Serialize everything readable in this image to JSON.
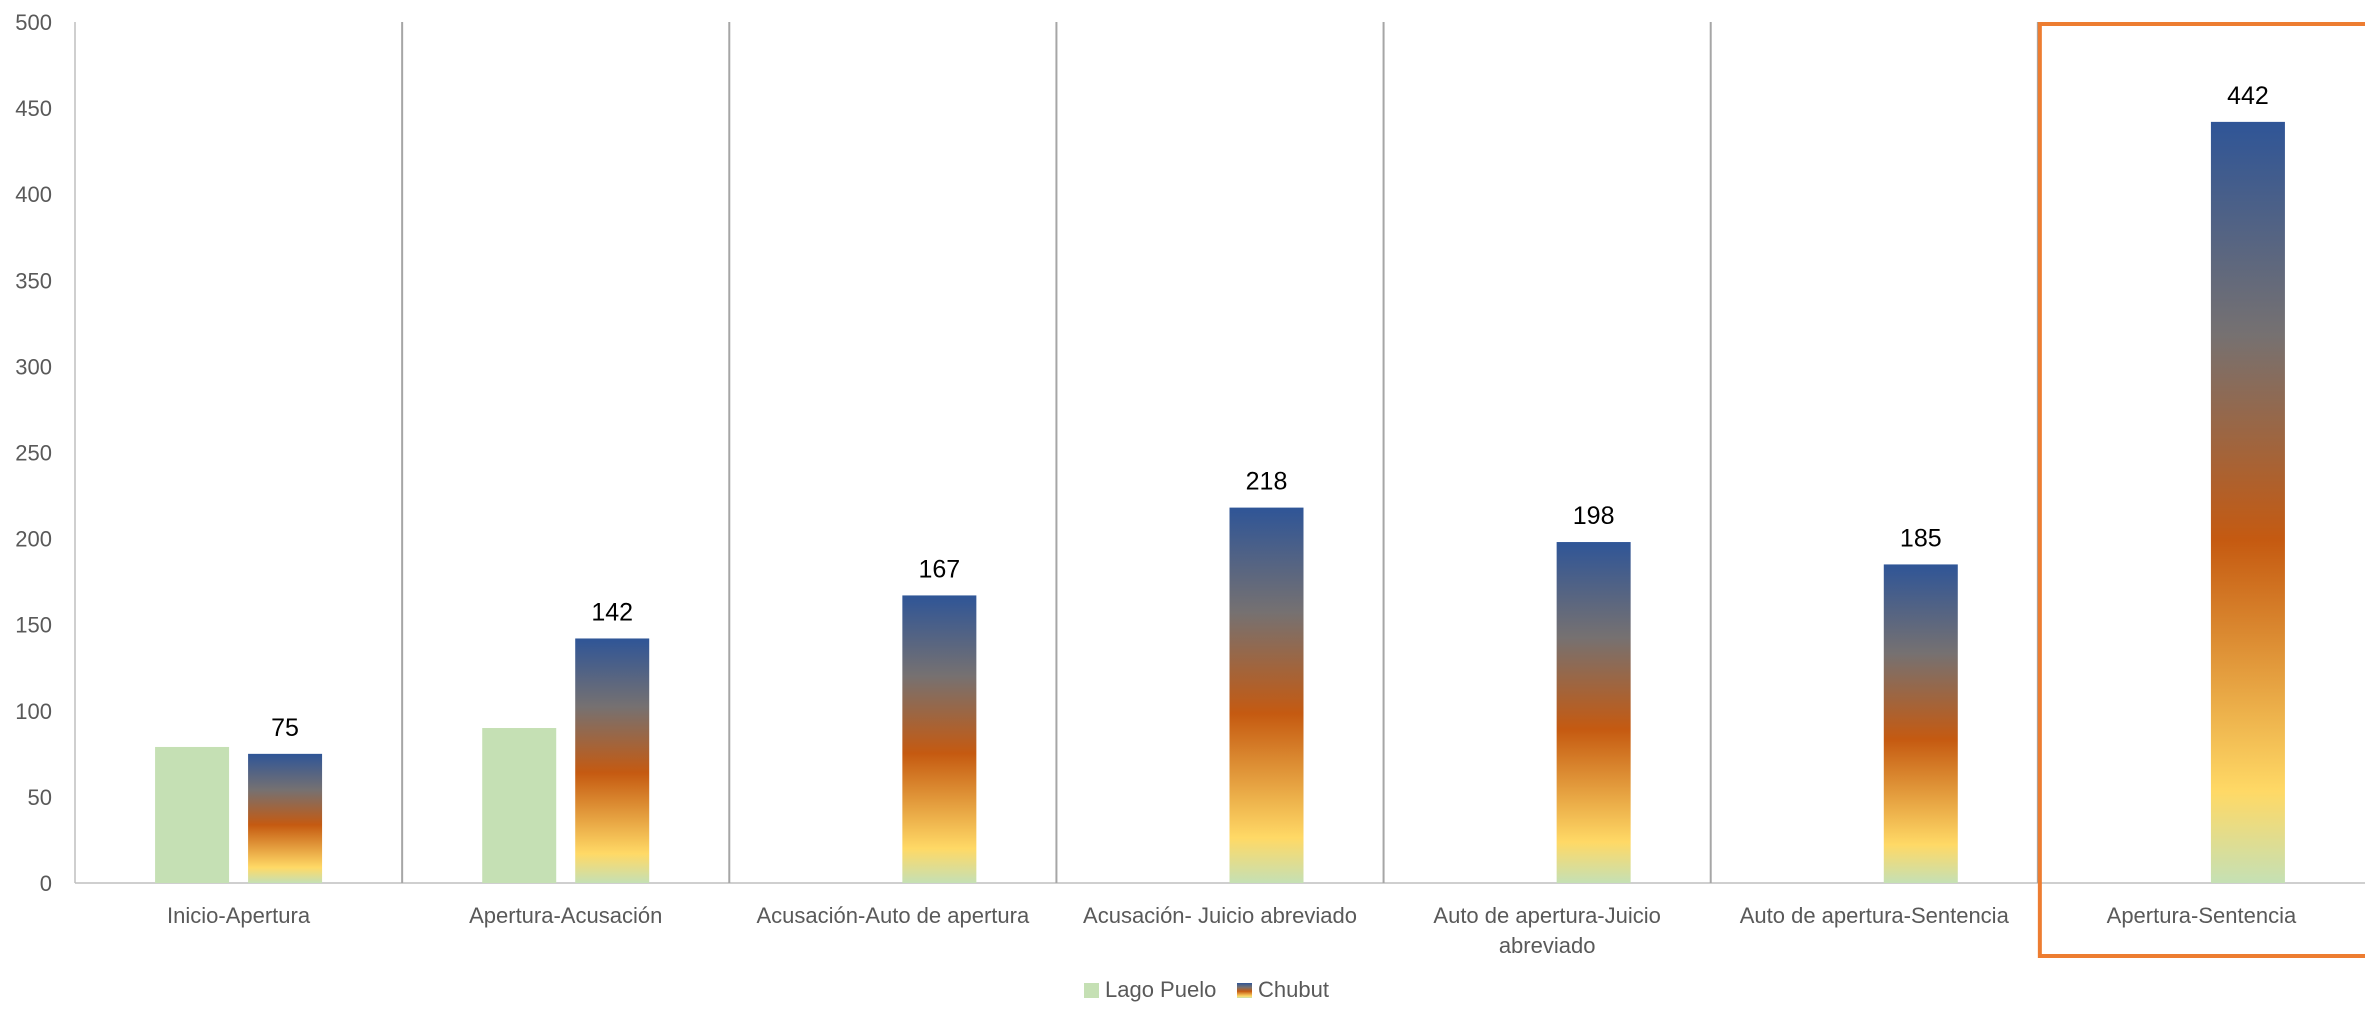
{
  "chart_data": {
    "type": "bar",
    "title": "",
    "xlabel": "",
    "ylabel": "",
    "ylim": [
      0,
      500
    ],
    "yticks": [
      0,
      50,
      100,
      150,
      200,
      250,
      300,
      350,
      400,
      450,
      500
    ],
    "categories": [
      [
        "Inicio-Apertura"
      ],
      [
        "Apertura-Acusación"
      ],
      [
        "Acusación-Auto de apertura"
      ],
      [
        "Acusación- Juicio abreviado"
      ],
      [
        "Auto de apertura-Juicio",
        "abreviado"
      ],
      [
        "Auto de apertura-Sentencia"
      ],
      [
        "Apertura-Sentencia"
      ]
    ],
    "series": [
      {
        "name": "Lago Puelo",
        "values": [
          79,
          90,
          null,
          null,
          null,
          null,
          null
        ],
        "color": "#c5e0b4",
        "data_labels": false
      },
      {
        "name": "Chubut",
        "values": [
          75,
          142,
          167,
          218,
          198,
          185,
          442
        ],
        "color": "#2f5597",
        "gradient": [
          "#c5e0b4",
          "#ffd966",
          "#c55a11",
          "#767171",
          "#2f5597"
        ],
        "data_labels": true
      }
    ],
    "highlight_category_index": 6,
    "highlight_color": "#ed7d31",
    "grid": false,
    "category_separators": true,
    "legend": "bottom-center"
  }
}
